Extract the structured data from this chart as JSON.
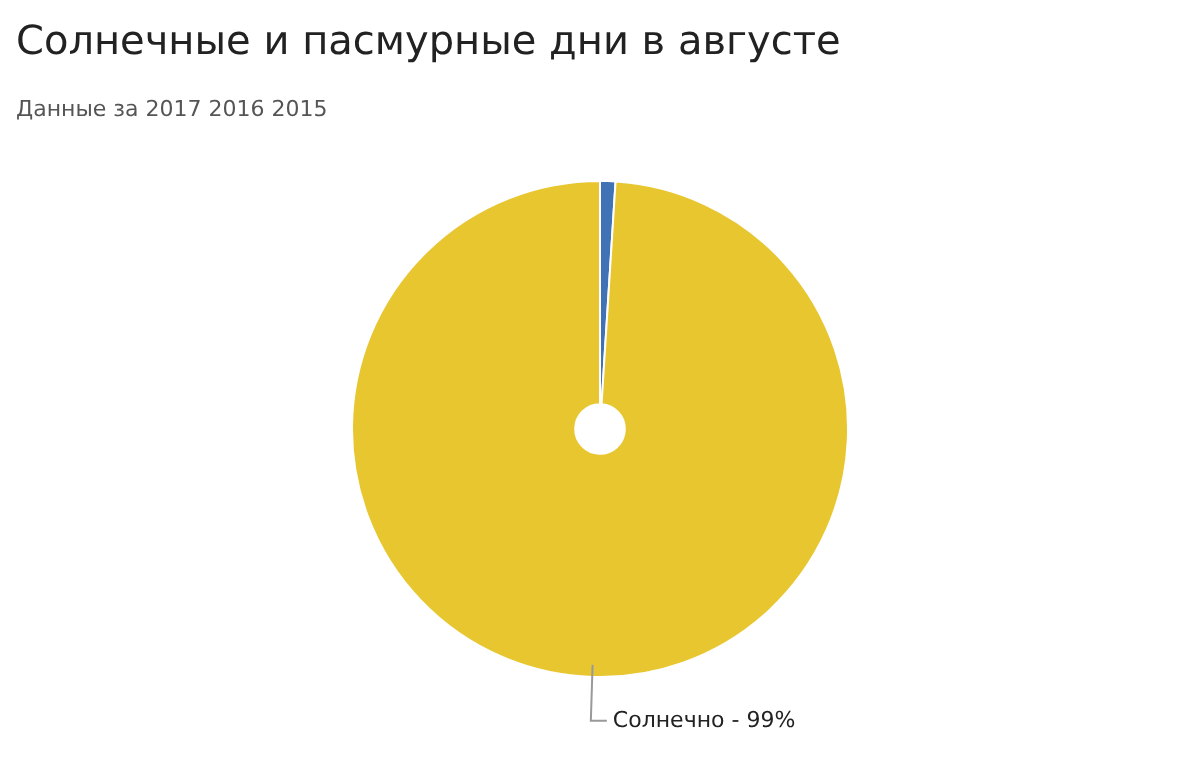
{
  "chart_data": {
    "type": "pie",
    "title": "Солнечные и пасмурные дни в августе",
    "subtitle": "Данные за 2017  2016  2015",
    "categories": [
      null,
      "Солнечно - 99%"
    ],
    "values": [
      1,
      99
    ],
    "colors": [
      "#3f73b5",
      "#e8c630"
    ],
    "legend": false
  }
}
